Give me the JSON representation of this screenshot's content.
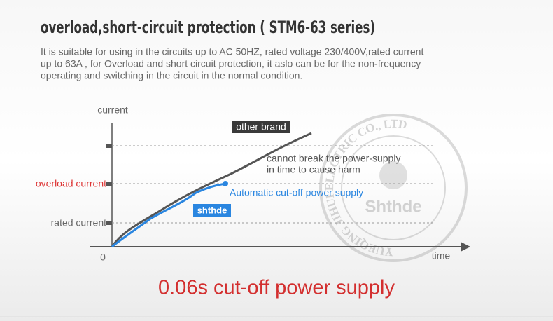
{
  "header": {
    "title": "overload,short-circuit protection ( STM6-63 series)",
    "description": [
      "It is suitable for using in the circuits up to AC 50HZ, rated voltage 230/400V,rated current",
      "up to 63A , for Overload and short circuit protection, it aslo can be for the non-frequency",
      "operating and switching in the circuit in the normal condition."
    ]
  },
  "diagram": {
    "y_axis_label": "current",
    "y_labels": [
      "overload current",
      "rated current"
    ],
    "origin": "0",
    "x_axis_label": "time",
    "curves": [
      {
        "name": "other brand",
        "note": [
          "cannot break the power-supply",
          "in time to cause harm"
        ]
      },
      {
        "name": "shthde",
        "note": [
          "Automatic cut-off power supply"
        ]
      }
    ]
  },
  "watermark": {
    "ring_text": "YUEQING JIHUI ELECTRIC CO., LTD",
    "center": "Shthde"
  },
  "footer": "0.06s cut-off power supply"
}
